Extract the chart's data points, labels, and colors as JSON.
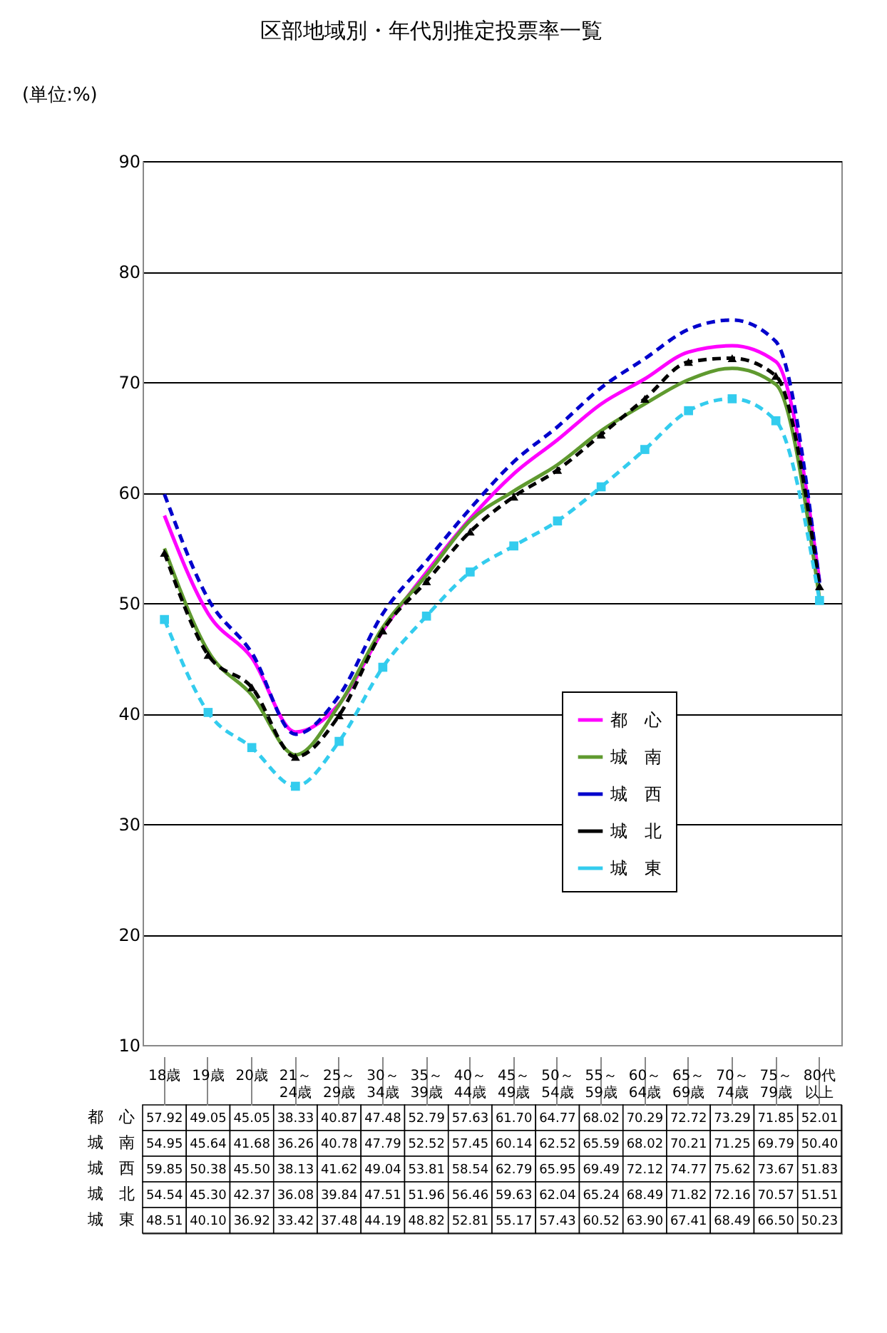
{
  "chart_data": {
    "type": "line",
    "title": "区部地域別・年代別推定投票率一覧",
    "ylabel": "(単位:%)",
    "categories": [
      "18歳",
      "19歳",
      "20歳",
      "21～24歳",
      "25～29歳",
      "30～34歳",
      "35～39歳",
      "40～44歳",
      "45～49歳",
      "50～54歳",
      "55～59歳",
      "60～64歳",
      "65～69歳",
      "70～74歳",
      "75～79歳",
      "80代以上"
    ],
    "ylim": [
      10,
      90
    ],
    "yticks": [
      10,
      20,
      30,
      40,
      50,
      60,
      70,
      80,
      90
    ],
    "grid": "y",
    "legend": "bottom right",
    "series": [
      {
        "name": "都　心",
        "color": "#ff00ff",
        "line_style": "solid",
        "marker": "none",
        "values": [
          57.92,
          49.05,
          45.05,
          38.33,
          40.87,
          47.48,
          52.79,
          57.63,
          61.7,
          64.77,
          68.02,
          70.29,
          72.72,
          73.29,
          71.85,
          52.01
        ],
        "value_labels": [
          "57.92",
          "49.05",
          "45.05",
          "38.33",
          "40.87",
          "47.48",
          "52.79",
          "57.63",
          "61.70",
          "64.77",
          "68.02",
          "70.29",
          "72.72",
          "73.29",
          "71.85",
          "52.01"
        ]
      },
      {
        "name": "城　南",
        "color": "#5f9a2f",
        "line_style": "solid",
        "marker": "none",
        "values": [
          54.95,
          45.64,
          41.68,
          36.26,
          40.78,
          47.79,
          52.52,
          57.45,
          60.14,
          62.52,
          65.59,
          68.02,
          70.21,
          71.25,
          69.79,
          50.4
        ],
        "value_labels": [
          "54.95",
          "45.64",
          "41.68",
          "36.26",
          "40.78",
          "47.79",
          "52.52",
          "57.45",
          "60.14",
          "62.52",
          "65.59",
          "68.02",
          "70.21",
          "71.25",
          "69.79",
          "50.40"
        ]
      },
      {
        "name": "城　西",
        "color": "#0000cc",
        "line_style": "dashed",
        "marker": "none",
        "values": [
          59.85,
          50.38,
          45.5,
          38.13,
          41.62,
          49.04,
          53.81,
          58.54,
          62.79,
          65.95,
          69.49,
          72.12,
          74.77,
          75.62,
          73.67,
          51.83
        ],
        "value_labels": [
          "59.85",
          "50.38",
          "45.50",
          "38.13",
          "41.62",
          "49.04",
          "53.81",
          "58.54",
          "62.79",
          "65.95",
          "69.49",
          "72.12",
          "74.77",
          "75.62",
          "73.67",
          "51.83"
        ]
      },
      {
        "name": "城　北",
        "color": "#000000",
        "line_style": "dashed",
        "marker": "triangle",
        "values": [
          54.54,
          45.3,
          42.37,
          36.08,
          39.84,
          47.51,
          51.96,
          56.46,
          59.63,
          62.04,
          65.24,
          68.49,
          71.82,
          72.16,
          70.57,
          51.51
        ],
        "value_labels": [
          "54.54",
          "45.30",
          "42.37",
          "36.08",
          "39.84",
          "47.51",
          "51.96",
          "56.46",
          "59.63",
          "62.04",
          "65.24",
          "68.49",
          "71.82",
          "72.16",
          "70.57",
          "51.51"
        ]
      },
      {
        "name": "城　東",
        "color": "#33ccee",
        "line_style": "dashed",
        "marker": "square",
        "values": [
          48.51,
          40.1,
          36.92,
          33.42,
          37.48,
          44.19,
          48.82,
          52.81,
          55.17,
          57.43,
          60.52,
          63.9,
          67.41,
          68.49,
          66.5,
          50.23
        ],
        "value_labels": [
          "48.51",
          "40.10",
          "36.92",
          "33.42",
          "37.48",
          "44.19",
          "48.82",
          "52.81",
          "55.17",
          "57.43",
          "60.52",
          "63.90",
          "67.41",
          "68.49",
          "66.50",
          "50.23"
        ]
      }
    ]
  }
}
